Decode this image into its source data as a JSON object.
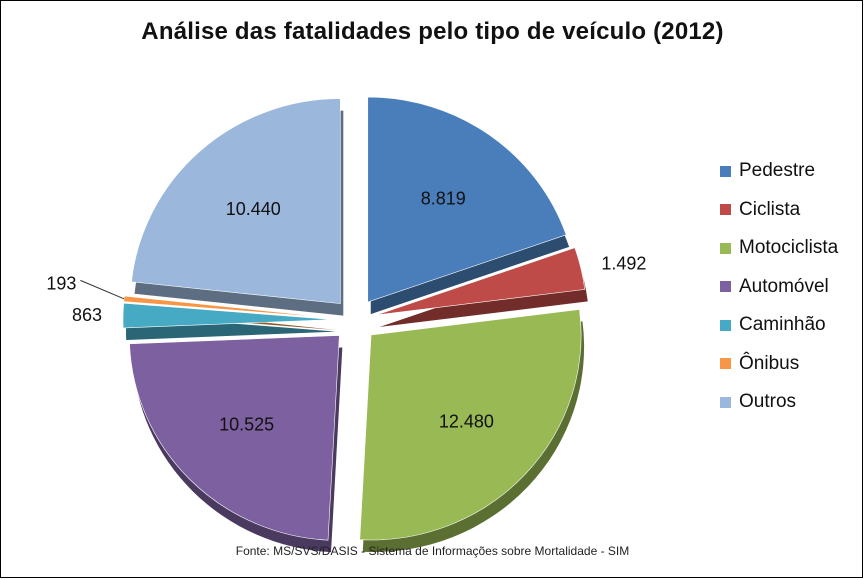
{
  "chart_data": {
    "type": "pie",
    "title": "Análise das fatalidades pelo tipo de veículo (2012)",
    "source": "Fonte: MS/SVS/DASIS - Sistema de Informações sobre Mortalidade - SIM",
    "legend_position": "right",
    "exploded": true,
    "three_d": true,
    "slices": [
      {
        "label": "Pedestre",
        "value": 8819,
        "value_label": "8.819",
        "color": "#4a7ebb"
      },
      {
        "label": "Ciclista",
        "value": 1492,
        "value_label": "1.492",
        "color": "#be4b48"
      },
      {
        "label": "Motociclista",
        "value": 12480,
        "value_label": "12.480",
        "color": "#98b954"
      },
      {
        "label": "Automóvel",
        "value": 10525,
        "value_label": "10.525",
        "color": "#7d60a0"
      },
      {
        "label": "Caminhão",
        "value": 863,
        "value_label": "863",
        "color": "#46aac5"
      },
      {
        "label": "Ônibus",
        "value": 193,
        "value_label": "193",
        "color": "#f79646"
      },
      {
        "label": "Outros",
        "value": 10440,
        "value_label": "10.440",
        "color": "#9bb7db"
      }
    ]
  }
}
